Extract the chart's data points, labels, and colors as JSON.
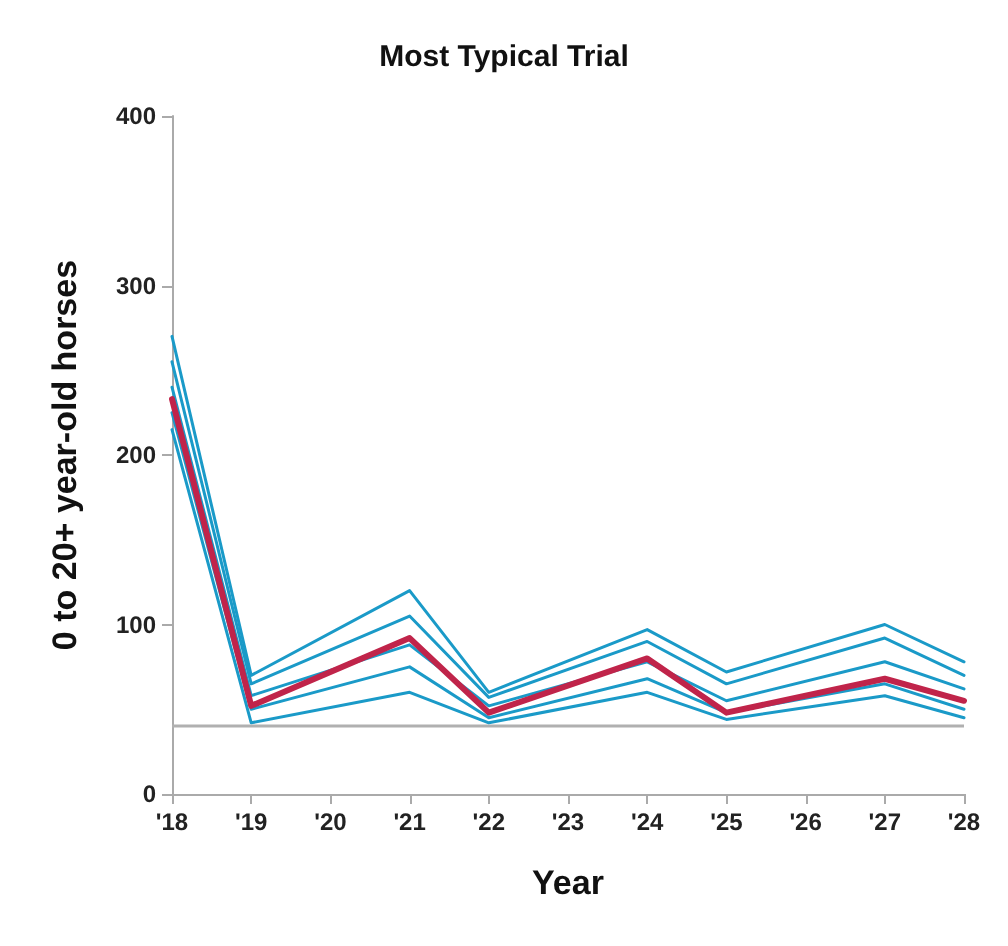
{
  "chart_data": {
    "type": "line",
    "title": "Most Typical Trial",
    "xlabel": "Year",
    "ylabel": "0 to 20+ year-old horses",
    "x": [
      2018,
      2019,
      2021,
      2022,
      2024,
      2025,
      2027,
      2028
    ],
    "xlim": [
      2018,
      2028
    ],
    "xticks": [
      {
        "value": 2018,
        "label": "'18"
      },
      {
        "value": 2019,
        "label": "'19"
      },
      {
        "value": 2020,
        "label": "'20"
      },
      {
        "value": 2021,
        "label": "'21"
      },
      {
        "value": 2022,
        "label": "'22"
      },
      {
        "value": 2023,
        "label": "'23"
      },
      {
        "value": 2024,
        "label": "'24"
      },
      {
        "value": 2025,
        "label": "'25"
      },
      {
        "value": 2026,
        "label": "'26"
      },
      {
        "value": 2027,
        "label": "'27"
      },
      {
        "value": 2028,
        "label": "'28"
      }
    ],
    "ylim": [
      0,
      400
    ],
    "yticks": [
      0,
      100,
      200,
      300,
      400
    ],
    "grid": false,
    "marker": "none",
    "line_style": "solid",
    "ref_lines": [
      {
        "axis": "y",
        "value": 40,
        "color": "#b0b0b0"
      }
    ],
    "series": [
      {
        "color": "#1a9ac8",
        "values": [
          270,
          70,
          120,
          60,
          97,
          72,
          100,
          78
        ]
      },
      {
        "color": "#1a9ac8",
        "values": [
          255,
          65,
          105,
          57,
          90,
          65,
          92,
          70
        ]
      },
      {
        "color": "#1a9ac8",
        "values": [
          240,
          58,
          88,
          52,
          78,
          55,
          78,
          62
        ]
      },
      {
        "color": "#1a9ac8",
        "values": [
          225,
          50,
          75,
          45,
          68,
          48,
          65,
          50
        ]
      },
      {
        "color": "#1a9ac8",
        "values": [
          215,
          42,
          60,
          42,
          60,
          44,
          58,
          45
        ]
      },
      {
        "color": "#c0244a",
        "values": [
          233,
          52,
          92,
          48,
          80,
          48,
          68,
          55
        ]
      }
    ]
  }
}
